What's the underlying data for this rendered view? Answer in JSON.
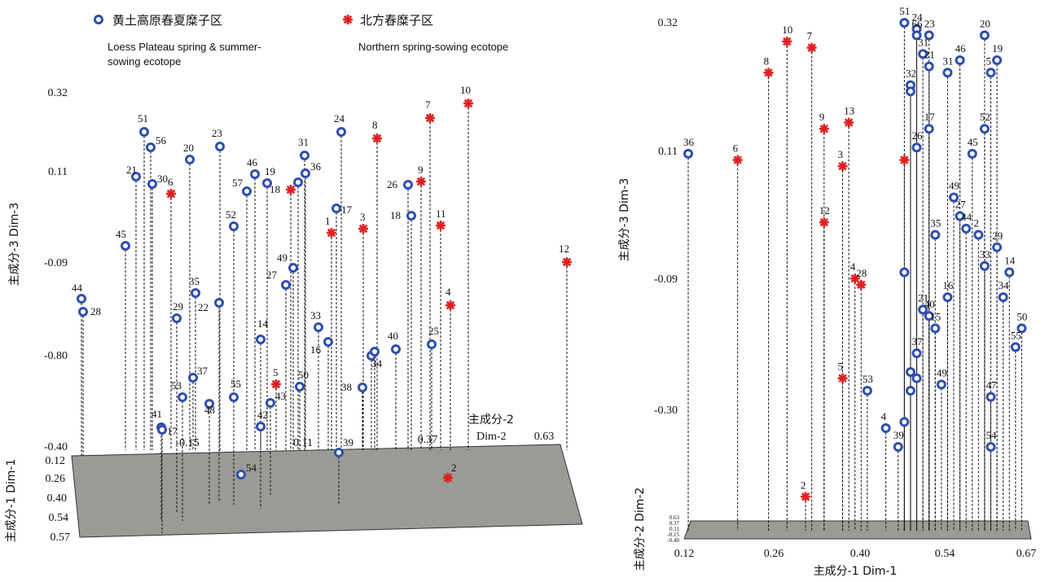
{
  "legend": {
    "series_a": {
      "label_zh": "黄土高原春夏糜子区",
      "label_en_1": "Loess Plateau spring & summer-",
      "label_en_2": "sowing ecotope",
      "color": "#2f4fb0",
      "marker": "ring-circle-icon"
    },
    "series_b": {
      "label_zh": "北方春糜子区",
      "label_en_1": "Northern spring-sowing ecotope",
      "color": "#e02020",
      "marker": "asterisk-icon"
    }
  },
  "chart_data": [
    {
      "type": "scatter3d",
      "view": "left",
      "axes": {
        "dim3": {
          "label": "主成分-3 Dim-3",
          "ticks": [
            "0.32",
            "0.11",
            "-0.09",
            "-0.80",
            "-0.40"
          ]
        },
        "dim2": {
          "label_1": "主成分-2",
          "label_2": "Dim-2",
          "ticks": [
            "-0.15",
            "0.11",
            "0.37",
            "0.63"
          ]
        },
        "dim1": {
          "label": "主成分-1 Dim-1",
          "ticks": [
            "0.12",
            "0.26",
            "0.40",
            "0.54",
            "0.57"
          ]
        }
      },
      "series": [
        {
          "group": "a",
          "points": [
            {
              "label": "44",
              "d3": -0.24
            },
            {
              "label": "28",
              "d3": -0.27
            },
            {
              "label": "45",
              "d3": -0.01
            },
            {
              "label": "21",
              "d3": 0.09
            },
            {
              "label": "51",
              "d3": 0.2
            },
            {
              "label": "56",
              "d3": 0.17
            },
            {
              "label": "30",
              "d3": 0.07
            },
            {
              "label": "41",
              "d3": -0.78
            },
            {
              "label": "17",
              "d3": -0.79
            },
            {
              "label": "20",
              "d3": 0.14
            },
            {
              "label": "29",
              "d3": -0.3
            },
            {
              "label": "35",
              "d3": -0.22
            },
            {
              "label": "53",
              "d3": -0.63
            },
            {
              "label": "37",
              "d3": -0.57
            },
            {
              "label": "48",
              "d3": -0.65
            },
            {
              "label": "23",
              "d3": 0.17
            },
            {
              "label": "22",
              "d3": -0.26
            },
            {
              "label": "52",
              "d3": 0.01
            },
            {
              "label": "55",
              "d3": -0.63
            },
            {
              "label": "57",
              "d3": 0.06
            },
            {
              "label": "46",
              "d3": 0.1
            },
            {
              "label": "19",
              "d3": 0.08
            },
            {
              "label": "14",
              "d3": -0.4
            },
            {
              "label": "42",
              "d3": -0.77
            },
            {
              "label": "43",
              "d3": -0.65
            },
            {
              "label": "27",
              "d3": -0.14
            },
            {
              "label": "49",
              "d3": -0.11
            },
            {
              "label": "50",
              "d3": -0.61
            },
            {
              "label": "31",
              "d3": 0.15
            },
            {
              "label": "36",
              "d3": 0.1
            },
            {
              "label": "17",
              "d3": 0.03
            },
            {
              "label": "33",
              "d3": -0.35
            },
            {
              "label": "16",
              "d3": -0.42
            },
            {
              "label": "24",
              "d3": 0.2
            },
            {
              "label": "38",
              "d3": -0.6
            },
            {
              "label": "34",
              "d3": -0.49
            },
            {
              "label": "39",
              "d3": -0.87
            },
            {
              "label": "26",
              "d3": 0.07
            },
            {
              "label": "18",
              "d3": 0.0
            },
            {
              "label": "40",
              "d3": -0.46
            },
            {
              "label": "25",
              "d3": -0.44
            },
            {
              "label": "54",
              "d3": -0.4
            },
            {
              "label": "",
              "d3": 0.08
            },
            {
              "label": "",
              "d3": -0.45
            }
          ]
        },
        {
          "group": "b",
          "points": [
            {
              "label": "6",
              "d3": 0.06
            },
            {
              "label": "18",
              "d3": 0.08
            },
            {
              "label": "8",
              "d3": 0.18
            },
            {
              "label": "1",
              "d3": -0.05
            },
            {
              "label": "3",
              "d3": -0.04
            },
            {
              "label": "5",
              "d3": -0.59
            },
            {
              "label": "10",
              "d3": 0.29
            },
            {
              "label": "7",
              "d3": 0.25
            },
            {
              "label": "9",
              "d3": 0.1
            },
            {
              "label": "11",
              "d3": -0.03
            },
            {
              "label": "4",
              "d3": -0.28
            },
            {
              "label": "12",
              "d3": -0.08
            },
            {
              "label": "2",
              "d3": -0.4
            }
          ]
        }
      ]
    },
    {
      "type": "scatter3d",
      "view": "right",
      "axes": {
        "dim3": {
          "label": "主成分-3 Dim-3",
          "ticks": [
            "0.32",
            "0.11",
            "-0.09",
            "-0.30"
          ]
        },
        "dim1": {
          "label": "主成分-1 Dim-1",
          "ticks": [
            "0.12",
            "0.26",
            "0.40",
            "0.54",
            "0.67"
          ],
          "range": [
            0.12,
            0.67
          ]
        },
        "dim2": {
          "label": "主成分-2 Dim-2",
          "ticks": [
            "0.63",
            "0.37",
            "0.11",
            "-0.15",
            "-0.40"
          ]
        }
      },
      "series": [
        {
          "group": "a",
          "points": [
            {
              "label": "36",
              "d1": 0.12,
              "d3": 0.11
            },
            {
              "label": "51",
              "d1": 0.47,
              "d3": 0.32
            },
            {
              "label": "24",
              "d1": 0.49,
              "d3": 0.31
            },
            {
              "label": "66",
              "d1": 0.49,
              "d3": 0.3
            },
            {
              "label": "23",
              "d1": 0.51,
              "d3": 0.3
            },
            {
              "label": "20",
              "d1": 0.6,
              "d3": 0.3
            },
            {
              "label": "31",
              "d1": 0.5,
              "d3": 0.27
            },
            {
              "label": "46",
              "d1": 0.56,
              "d3": 0.26
            },
            {
              "label": "19",
              "d1": 0.62,
              "d3": 0.26
            },
            {
              "label": "21",
              "d1": 0.51,
              "d3": 0.25
            },
            {
              "label": "31",
              "d1": 0.54,
              "d3": 0.24
            },
            {
              "label": "5",
              "d1": 0.61,
              "d3": 0.24
            },
            {
              "label": "32",
              "d1": 0.48,
              "d3": 0.22
            },
            {
              "label": "",
              "d1": 0.48,
              "d3": 0.21
            },
            {
              "label": "26",
              "d1": 0.49,
              "d3": 0.12
            },
            {
              "label": "17",
              "d1": 0.51,
              "d3": 0.15
            },
            {
              "label": "52",
              "d1": 0.6,
              "d3": 0.15
            },
            {
              "label": "45",
              "d1": 0.58,
              "d3": 0.11
            },
            {
              "label": "49",
              "d1": 0.55,
              "d3": 0.04
            },
            {
              "label": "27",
              "d1": 0.56,
              "d3": 0.01
            },
            {
              "label": "44",
              "d1": 0.57,
              "d3": -0.01
            },
            {
              "label": "2",
              "d1": 0.59,
              "d3": -0.02
            },
            {
              "label": "29",
              "d1": 0.62,
              "d3": -0.04
            },
            {
              "label": "35",
              "d1": 0.52,
              "d3": -0.02
            },
            {
              "label": "33",
              "d1": 0.6,
              "d3": -0.07
            },
            {
              "label": "14",
              "d1": 0.64,
              "d3": -0.08
            },
            {
              "label": "",
              "d1": 0.47,
              "d3": -0.08
            },
            {
              "label": "16",
              "d1": 0.54,
              "d3": -0.12
            },
            {
              "label": "34",
              "d1": 0.63,
              "d3": -0.12
            },
            {
              "label": "21",
              "d1": 0.5,
              "d3": -0.14
            },
            {
              "label": "40",
              "d1": 0.51,
              "d3": -0.15
            },
            {
              "label": "15",
              "d1": 0.52,
              "d3": -0.17
            },
            {
              "label": "50",
              "d1": 0.66,
              "d3": -0.17
            },
            {
              "label": "55",
              "d1": 0.65,
              "d3": -0.2
            },
            {
              "label": "37",
              "d1": 0.49,
              "d3": -0.21
            },
            {
              "label": "",
              "d1": 0.48,
              "d3": -0.24
            },
            {
              "label": "",
              "d1": 0.49,
              "d3": -0.25
            },
            {
              "label": "49",
              "d1": 0.53,
              "d3": -0.26
            },
            {
              "label": "53",
              "d1": 0.41,
              "d3": -0.27
            },
            {
              "label": "",
              "d1": 0.48,
              "d3": -0.27
            },
            {
              "label": "47",
              "d1": 0.61,
              "d3": -0.28
            },
            {
              "label": "",
              "d1": 0.47,
              "d3": -0.32
            },
            {
              "label": "4",
              "d1": 0.44,
              "d3": -0.33
            },
            {
              "label": "39",
              "d1": 0.46,
              "d3": -0.36
            },
            {
              "label": "54",
              "d1": 0.61,
              "d3": -0.36
            }
          ]
        },
        {
          "group": "b",
          "points": [
            {
              "label": "10",
              "d1": 0.28,
              "d3": 0.29
            },
            {
              "label": "7",
              "d1": 0.32,
              "d3": 0.28
            },
            {
              "label": "8",
              "d1": 0.25,
              "d3": 0.24
            },
            {
              "label": "9",
              "d1": 0.34,
              "d3": 0.15
            },
            {
              "label": "13",
              "d1": 0.38,
              "d3": 0.16
            },
            {
              "label": "6",
              "d1": 0.2,
              "d3": 0.1
            },
            {
              "label": "3",
              "d1": 0.37,
              "d3": 0.09
            },
            {
              "label": "",
              "d1": 0.47,
              "d3": 0.1
            },
            {
              "label": "12",
              "d1": 0.34,
              "d3": 0.0
            },
            {
              "label": "4",
              "d1": 0.39,
              "d3": -0.09
            },
            {
              "label": "28",
              "d1": 0.4,
              "d3": -0.1
            },
            {
              "label": "5",
              "d1": 0.37,
              "d3": -0.25
            },
            {
              "label": "2",
              "d1": 0.31,
              "d3": -0.44
            }
          ]
        }
      ]
    }
  ]
}
